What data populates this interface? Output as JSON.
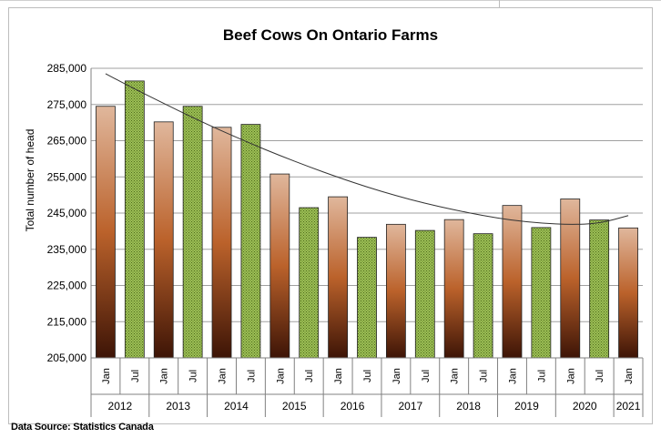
{
  "chart_data": {
    "type": "bar",
    "title": "Beef Cows On Ontario Farms",
    "xlabel": "",
    "ylabel": "Total number of head",
    "ylim": [
      205000,
      285000
    ],
    "yticks": [
      "285,000",
      "275,000",
      "265,000",
      "255,000",
      "245,000",
      "235,000",
      "225,000",
      "215,000",
      "205,000"
    ],
    "grid": true,
    "legend": "none",
    "trendline": "polynomial",
    "categories": [
      "Jan 2012",
      "Jul 2012",
      "Jan 2013",
      "Jul 2013",
      "Jan 2014",
      "Jul 2014",
      "Jan 2015",
      "Jul 2015",
      "Jan 2016",
      "Jul 2016",
      "Jan 2017",
      "Jul 2017",
      "Jan 2018",
      "Jul 2018",
      "Jan 2019",
      "Jul 2019",
      "Jan 2020",
      "Jul 2020",
      "Jan 2021"
    ],
    "month_labels": [
      "Jan",
      "Jul",
      "Jan",
      "Jul",
      "Jan",
      "Jul",
      "Jan",
      "Jul",
      "Jan",
      "Jul",
      "Jan",
      "Jul",
      "Jan",
      "Jul",
      "Jan",
      "Jul",
      "Jan",
      "Jul",
      "Jan"
    ],
    "year_labels": [
      "2012",
      "2013",
      "2014",
      "2015",
      "2016",
      "2017",
      "2018",
      "2019",
      "2020",
      "2021"
    ],
    "values": [
      274500,
      281500,
      270200,
      274500,
      268700,
      269500,
      255800,
      246500,
      249500,
      238300,
      241900,
      240200,
      243200,
      239300,
      247100,
      241000,
      248900,
      243100,
      240900
    ],
    "trend": [
      283500,
      279300,
      275300,
      271400,
      267700,
      264200,
      260900,
      257800,
      254900,
      252200,
      249800,
      247700,
      245900,
      244300,
      243000,
      242200,
      241800,
      242100,
      244300
    ],
    "colors": {
      "jan_top": "#e0b79c",
      "jan_mid": "#bb622b",
      "jan_bottom": "#3d1406",
      "jul_fill": "#9cbf55",
      "jul_dark": "#4f6b1c",
      "grid": "#a0a0a0",
      "trend": "#333333"
    }
  },
  "source": "Data Source: Statistics Canada"
}
